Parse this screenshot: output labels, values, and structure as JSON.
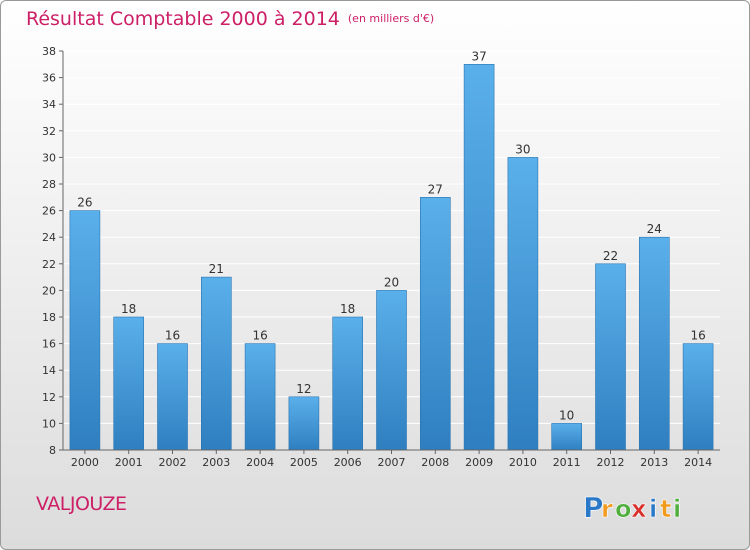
{
  "header": {
    "title": "Résultat Comptable 2000 à 2014",
    "subtitle": "(en milliers d'€)"
  },
  "commune": "VALJOUZE",
  "logo": {
    "text": "Proxiti",
    "letters": [
      "P",
      "r",
      "o",
      "x",
      "i",
      "t",
      "i"
    ],
    "colors": [
      "#2a78c8",
      "#f19a1e",
      "#4fae3c",
      "#d9302c",
      "#2a78c8",
      "#f19a1e",
      "#4fae3c"
    ]
  },
  "colors": {
    "accent": "#cc1f66",
    "bar_top": "#5ab0ea",
    "bar_bottom": "#2f7fc0",
    "grid": "#ffffff",
    "axis_text": "#333333"
  },
  "chart_data": {
    "type": "bar",
    "title": "Résultat Comptable 2000 à 2014",
    "subtitle": "(en milliers d'€)",
    "xlabel": "",
    "ylabel": "",
    "categories": [
      "2000",
      "2001",
      "2002",
      "2003",
      "2004",
      "2005",
      "2006",
      "2007",
      "2008",
      "2009",
      "2010",
      "2011",
      "2012",
      "2013",
      "2014"
    ],
    "values": [
      26,
      18,
      16,
      21,
      16,
      12,
      18,
      20,
      27,
      37,
      30,
      10,
      22,
      24,
      16
    ],
    "ylim": [
      8,
      38
    ],
    "yticks": [
      8,
      10,
      12,
      14,
      16,
      18,
      20,
      22,
      24,
      26,
      28,
      30,
      32,
      34,
      36,
      38
    ],
    "grid": true,
    "data_labels": true
  }
}
